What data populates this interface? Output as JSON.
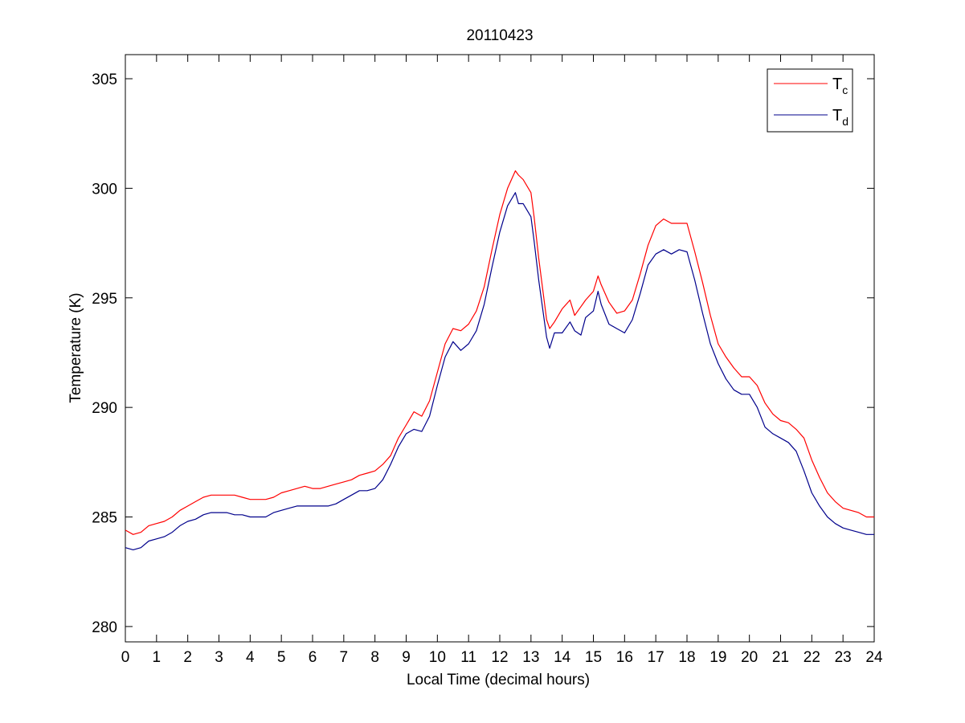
{
  "chart_data": {
    "type": "line",
    "title": "20110423",
    "xlabel": "Local Time (decimal hours)",
    "ylabel": "Temperature (K)",
    "xlim": [
      0,
      24
    ],
    "ylim": [
      279.3,
      306.1
    ],
    "xticks": [
      0,
      1,
      2,
      3,
      4,
      5,
      6,
      7,
      8,
      9,
      10,
      11,
      12,
      13,
      14,
      15,
      16,
      17,
      18,
      19,
      20,
      21,
      22,
      23,
      24
    ],
    "yticks": [
      280,
      285,
      290,
      295,
      300,
      305
    ],
    "grid": false,
    "legend_position": "top-right",
    "series": [
      {
        "name_main": "T",
        "name_sub": "c",
        "color": "#ff0000",
        "x": [
          0,
          0.25,
          0.5,
          0.75,
          1,
          1.25,
          1.5,
          1.75,
          2,
          2.25,
          2.5,
          2.75,
          3,
          3.25,
          3.5,
          3.75,
          4,
          4.25,
          4.5,
          4.75,
          5,
          5.25,
          5.5,
          5.75,
          6,
          6.25,
          6.5,
          6.75,
          7,
          7.25,
          7.5,
          7.75,
          8,
          8.25,
          8.5,
          8.75,
          9,
          9.25,
          9.5,
          9.75,
          10,
          10.25,
          10.5,
          10.75,
          11,
          11.25,
          11.5,
          11.75,
          12,
          12.25,
          12.5,
          12.6,
          12.75,
          13,
          13.1,
          13.25,
          13.5,
          13.6,
          13.75,
          14,
          14.25,
          14.4,
          14.6,
          14.75,
          15,
          15.15,
          15.25,
          15.5,
          15.75,
          16,
          16.25,
          16.5,
          16.75,
          17,
          17.25,
          17.5,
          17.75,
          18,
          18.25,
          18.5,
          18.75,
          19,
          19.25,
          19.5,
          19.75,
          20,
          20.25,
          20.5,
          20.75,
          21,
          21.25,
          21.5,
          21.75,
          22,
          22.25,
          22.5,
          22.75,
          23,
          23.25,
          23.5,
          23.75,
          24
        ],
        "y": [
          284.4,
          284.2,
          284.3,
          284.6,
          284.7,
          284.8,
          285.0,
          285.3,
          285.5,
          285.7,
          285.9,
          286.0,
          286.0,
          286.0,
          286.0,
          285.9,
          285.8,
          285.8,
          285.8,
          285.9,
          286.1,
          286.2,
          286.3,
          286.4,
          286.3,
          286.3,
          286.4,
          286.5,
          286.6,
          286.7,
          286.9,
          287.0,
          287.1,
          287.4,
          287.8,
          288.6,
          289.2,
          289.8,
          289.6,
          290.3,
          291.6,
          292.9,
          293.6,
          293.5,
          293.8,
          294.4,
          295.5,
          297.2,
          298.8,
          300.0,
          300.8,
          300.6,
          300.4,
          299.8,
          298.7,
          296.8,
          294.0,
          293.6,
          293.9,
          294.5,
          294.9,
          294.2,
          294.6,
          294.9,
          295.3,
          296.0,
          295.6,
          294.8,
          294.3,
          294.4,
          294.9,
          296.1,
          297.4,
          298.3,
          298.6,
          298.4,
          298.4,
          298.4,
          297.1,
          295.7,
          294.2,
          292.9,
          292.3,
          291.8,
          291.4,
          291.4,
          291.0,
          290.2,
          289.7,
          289.4,
          289.3,
          289.0,
          288.6,
          287.6,
          286.8,
          286.1,
          285.7,
          285.4,
          285.3,
          285.2,
          285.0,
          285.0
        ]
      },
      {
        "name_main": "T",
        "name_sub": "d",
        "color": "#00008b",
        "x": [
          0,
          0.25,
          0.5,
          0.75,
          1,
          1.25,
          1.5,
          1.75,
          2,
          2.25,
          2.5,
          2.75,
          3,
          3.25,
          3.5,
          3.75,
          4,
          4.25,
          4.5,
          4.75,
          5,
          5.25,
          5.5,
          5.75,
          6,
          6.25,
          6.5,
          6.75,
          7,
          7.25,
          7.5,
          7.75,
          8,
          8.25,
          8.5,
          8.75,
          9,
          9.25,
          9.5,
          9.75,
          10,
          10.25,
          10.5,
          10.75,
          11,
          11.25,
          11.5,
          11.75,
          12,
          12.25,
          12.5,
          12.6,
          12.75,
          13,
          13.1,
          13.25,
          13.5,
          13.6,
          13.75,
          14,
          14.25,
          14.4,
          14.6,
          14.75,
          15,
          15.15,
          15.25,
          15.5,
          15.75,
          16,
          16.25,
          16.5,
          16.75,
          17,
          17.25,
          17.5,
          17.75,
          18,
          18.25,
          18.5,
          18.75,
          19,
          19.25,
          19.5,
          19.75,
          20,
          20.25,
          20.5,
          20.75,
          21,
          21.25,
          21.5,
          21.75,
          22,
          22.25,
          22.5,
          22.75,
          23,
          23.25,
          23.5,
          23.75,
          24
        ],
        "y": [
          283.6,
          283.5,
          283.6,
          283.9,
          284.0,
          284.1,
          284.3,
          284.6,
          284.8,
          284.9,
          285.1,
          285.2,
          285.2,
          285.2,
          285.1,
          285.1,
          285.0,
          285.0,
          285.0,
          285.2,
          285.3,
          285.4,
          285.5,
          285.5,
          285.5,
          285.5,
          285.5,
          285.6,
          285.8,
          286.0,
          286.2,
          286.2,
          286.3,
          286.7,
          287.4,
          288.2,
          288.8,
          289.0,
          288.9,
          289.6,
          291.0,
          292.3,
          293.0,
          292.6,
          292.9,
          293.5,
          294.7,
          296.4,
          298.0,
          299.2,
          299.8,
          299.3,
          299.3,
          298.7,
          297.6,
          295.8,
          293.2,
          292.7,
          293.4,
          293.4,
          293.9,
          293.5,
          293.3,
          294.1,
          294.4,
          295.3,
          294.7,
          293.8,
          293.6,
          293.4,
          294.0,
          295.2,
          296.5,
          297.0,
          297.2,
          297.0,
          297.2,
          297.1,
          295.8,
          294.3,
          292.9,
          292.0,
          291.3,
          290.8,
          290.6,
          290.6,
          290.0,
          289.1,
          288.8,
          288.6,
          288.4,
          288.0,
          287.1,
          286.1,
          285.5,
          285.0,
          284.7,
          284.5,
          284.4,
          284.3,
          284.2,
          284.2
        ]
      }
    ]
  }
}
